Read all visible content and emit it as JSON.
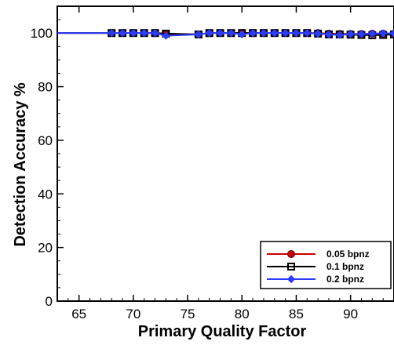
{
  "chart_data": {
    "type": "line",
    "title": "",
    "xlabel": "Primary Quality Factor",
    "ylabel": "Detection Accuracy %",
    "xlim": [
      63,
      94
    ],
    "ylim": [
      0,
      110
    ],
    "xticks": [
      65,
      70,
      75,
      80,
      85,
      90
    ],
    "yticks": [
      0,
      20,
      40,
      60,
      80,
      100
    ],
    "legend_position": "bottom-right",
    "grid": false,
    "x": [
      63,
      68,
      69,
      70,
      71,
      72,
      73,
      76,
      77,
      78,
      79,
      80,
      81,
      82,
      83,
      84,
      85,
      86,
      87,
      88,
      89,
      90,
      91,
      92,
      93,
      94
    ],
    "series": [
      {
        "name": "0.05 bpnz",
        "color": "#cc0000",
        "marker": "circle",
        "values": [
          100,
          100,
          100,
          100,
          100,
          100,
          99.5,
          99.5,
          100,
          100,
          100,
          100,
          100,
          100,
          100,
          100,
          100,
          100,
          100,
          99.8,
          99.7,
          99.7,
          99.7,
          99.8,
          99.8,
          99.8
        ]
      },
      {
        "name": "0.1 bpnz",
        "color": "#000000",
        "marker": "square",
        "values": [
          100,
          100,
          100,
          100,
          100,
          100,
          99.8,
          99.5,
          100,
          100,
          100,
          100,
          100,
          100,
          100,
          100,
          100,
          100,
          99.8,
          99.5,
          99.5,
          99.4,
          99.3,
          99.2,
          99.3,
          99.5
        ]
      },
      {
        "name": "0.2 bpnz",
        "color": "#2b3cff",
        "marker": "diamond",
        "values": [
          100,
          100,
          100,
          100,
          100,
          100,
          99,
          99.5,
          100,
          100,
          100,
          99.5,
          100,
          100,
          100,
          100,
          100,
          100,
          99.8,
          99.5,
          99.3,
          99.6,
          99.6,
          99.8,
          99.9,
          99.9
        ]
      }
    ]
  }
}
